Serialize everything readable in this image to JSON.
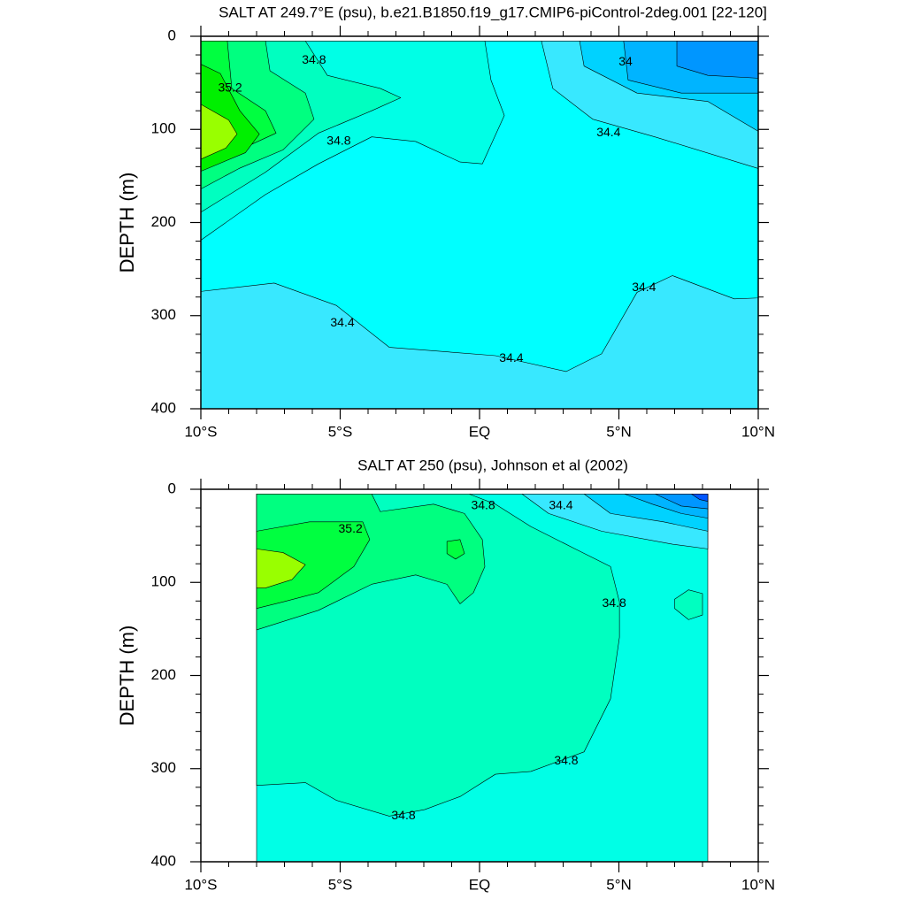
{
  "chart_data": [
    {
      "type": "contour",
      "title": "SALT AT 249.7°E (psu), b.e21.B1850.f19_g17.CMIP6-piControl-2deg.001 [22-120]",
      "ylabel": "DEPTH (m)",
      "xlim": [
        -10,
        10
      ],
      "ylim": [
        0,
        400
      ],
      "y_reversed": true,
      "xticks": [
        {
          "value": -10,
          "label": "10°S"
        },
        {
          "value": -5,
          "label": "5°S"
        },
        {
          "value": 0,
          "label": "EQ"
        },
        {
          "value": 5,
          "label": "5°N"
        },
        {
          "value": 10,
          "label": "10°N"
        }
      ],
      "yticks": [
        0,
        100,
        200,
        300,
        400
      ],
      "regions": [
        {
          "level": 34.2,
          "color": "#38e8ff",
          "x": [
            -10,
            10,
            10,
            -10
          ],
          "y": [
            5,
            5,
            400,
            400
          ]
        },
        {
          "level": 34.4,
          "color": "#00ffff",
          "x": [
            -10,
            2.22,
            2.63,
            4.06,
            6.29,
            10,
            10,
            9.14,
            6.92,
            5.65,
            4.38,
            3.11,
            0.57,
            -3.24,
            -5.14,
            -7.37,
            -10
          ],
          "y": [
            5,
            5,
            56,
            89,
            108,
            142,
            281,
            282,
            257,
            275,
            341,
            360,
            343,
            334,
            289,
            265,
            274
          ]
        },
        {
          "level": 34.6,
          "color": "#00ffe6",
          "x": [
            -10,
            0.19,
            0.41,
            0.89,
            0.1,
            -0.7,
            -2.29,
            -3.87,
            -5.78,
            -7.68,
            -10
          ],
          "y": [
            5,
            5,
            47,
            85,
            137,
            135,
            113,
            108,
            137,
            170,
            219
          ]
        },
        {
          "level": 34.8,
          "color": "#00ffc0",
          "x": [
            -10,
            -6.25,
            -5.46,
            -3.56,
            -2.83,
            -3.87,
            -5.78,
            -7.68,
            -10
          ],
          "y": [
            5,
            5,
            42,
            56,
            66,
            80,
            104,
            146,
            189
          ]
        },
        {
          "level": 35.0,
          "color": "#00ff80",
          "x": [
            -10,
            -7.68,
            -7.52,
            -6.25,
            -5.94,
            -7.05,
            -8.63,
            -10
          ],
          "y": [
            5,
            5,
            37,
            61,
            89,
            122,
            142,
            164
          ]
        },
        {
          "level": 35.2,
          "color": "#00ff40",
          "x": [
            -10,
            -9.05,
            -8.89,
            -7.68,
            -7.3,
            -8.32,
            -10
          ],
          "y": [
            5,
            5,
            56,
            80,
            104,
            118,
            123
          ]
        },
        {
          "level": 35.4,
          "color": "#00f000",
          "x": [
            -10,
            -9.3,
            -8.6,
            -7.9,
            -8.4,
            -10
          ],
          "y": [
            30,
            40,
            80,
            105,
            125,
            145
          ]
        },
        {
          "level": 35.6,
          "color": "#99ff00",
          "x": [
            -10,
            -9.0,
            -8.7,
            -9.1,
            -10
          ],
          "y": [
            73,
            90,
            105,
            120,
            132
          ]
        },
        {
          "level": 34.0,
          "color": "#00d2ff",
          "x": [
            3.59,
            10,
            10,
            8.19,
            5.65,
            3.75
          ],
          "y": [
            5,
            5,
            102,
            70,
            61,
            32
          ]
        },
        {
          "level": 33.8,
          "color": "#00b4ff",
          "x": [
            5.17,
            10,
            10,
            7.24,
            5.33
          ],
          "y": [
            5,
            5,
            61,
            61,
            47
          ]
        },
        {
          "level": 33.6,
          "color": "#0096ff",
          "x": [
            7.08,
            10,
            10,
            8.19,
            7.08
          ],
          "y": [
            5,
            5,
            45,
            42,
            32
          ]
        }
      ],
      "labels": [
        {
          "value": 34.8,
          "x": -5.94,
          "y": 26
        },
        {
          "value": 35.2,
          "x": -8.95,
          "y": 56
        },
        {
          "value": 34.8,
          "x": -5.05,
          "y": 113
        },
        {
          "value": 34,
          "x": 5.24,
          "y": 28
        },
        {
          "value": 34.4,
          "x": 4.63,
          "y": 104
        },
        {
          "value": 34.4,
          "x": 5.9,
          "y": 270
        },
        {
          "value": 34.4,
          "x": -4.92,
          "y": 308
        },
        {
          "value": 34.4,
          "x": 1.14,
          "y": 346
        }
      ]
    },
    {
      "type": "contour",
      "title": "SALT AT 250 (psu), Johnson et al (2002)",
      "ylabel": "DEPTH (m)",
      "xlim": [
        -10,
        10
      ],
      "ylim": [
        0,
        400
      ],
      "y_reversed": true,
      "xticks": [
        {
          "value": -10,
          "label": "10°S"
        },
        {
          "value": -5,
          "label": "5°S"
        },
        {
          "value": 0,
          "label": "EQ"
        },
        {
          "value": 5,
          "label": "5°N"
        },
        {
          "value": 10,
          "label": "10°N"
        }
      ],
      "yticks": [
        0,
        100,
        200,
        300,
        400
      ],
      "regions": [
        {
          "level": 34.6,
          "color": "#00ffe6",
          "x": [
            -8,
            8.19,
            8.19,
            -8
          ],
          "y": [
            5,
            5,
            400,
            400
          ]
        },
        {
          "level": 34.8,
          "color": "#00ffc0",
          "x": [
            -8,
            -0.38,
            0.57,
            1.84,
            3.43,
            4.7,
            5.02,
            5.02,
            4.7,
            3.75,
            1.84,
            0.57,
            -0.7,
            -1.97,
            -3.24,
            -5.14,
            -6.25,
            -8
          ],
          "y": [
            5,
            5,
            16,
            40,
            64,
            83,
            121,
            159,
            225,
            282,
            303,
            306,
            330,
            344,
            351,
            334,
            315,
            318
          ]
        },
        {
          "level": 34.8,
          "color": "#00ffc0",
          "x": [
            7.0,
            7.5,
            8.0,
            8.0,
            7.5,
            7.0
          ],
          "y": [
            118,
            108,
            112,
            135,
            140,
            128
          ]
        },
        {
          "level": 35.0,
          "color": "#00ff80",
          "x": [
            -8,
            -3.87,
            -3.56,
            -1.65,
            -0.54,
            0.1,
            0.19,
            -0.22,
            -0.7,
            -1.17,
            -2.29,
            -3.87,
            -5.78,
            -8
          ],
          "y": [
            5,
            5,
            24,
            16,
            26,
            54,
            83,
            111,
            123,
            102,
            92,
            102,
            130,
            151
          ]
        },
        {
          "level": 35.2,
          "color": "#00ff40",
          "x": [
            -8,
            -6.1,
            -4.19,
            -3.94,
            -4.51,
            -5.78,
            -7.05,
            -8
          ],
          "y": [
            45,
            35,
            35,
            54,
            83,
            111,
            121,
            128
          ]
        },
        {
          "level": 35.2,
          "color": "#00ff40",
          "x": [
            -1.17,
            -0.7,
            -0.54,
            -0.86,
            -1.17
          ],
          "y": [
            56,
            54,
            69,
            75,
            69
          ]
        },
        {
          "level": 35.4,
          "color": "#99ff00",
          "x": [
            -8,
            -7.05,
            -6.25,
            -6.73,
            -7.68,
            -8
          ],
          "y": [
            64,
            68,
            81,
            97,
            106,
            106
          ]
        },
        {
          "level": 34.4,
          "color": "#38e8ff",
          "x": [
            1.52,
            8.19,
            8.19,
            6.92,
            4.38,
            2.48
          ],
          "y": [
            5,
            5,
            64,
            59,
            45,
            26
          ]
        },
        {
          "level": 34.2,
          "color": "#00d2ff",
          "x": [
            3.75,
            8.19,
            8.19,
            6.6,
            4.7
          ],
          "y": [
            5,
            5,
            45,
            35,
            26
          ]
        },
        {
          "level": 34.0,
          "color": "#00b4ff",
          "x": [
            5.2,
            8.19,
            8.19,
            7.24,
            6.2
          ],
          "y": [
            5,
            5,
            31,
            26,
            16
          ]
        },
        {
          "level": 33.8,
          "color": "#0096ff",
          "x": [
            6.3,
            8.19,
            8.19,
            7.24
          ],
          "y": [
            5,
            5,
            21,
            18
          ]
        },
        {
          "level": 33.6,
          "color": "#0055ff",
          "x": [
            7.6,
            8.19,
            8.19,
            7.9
          ],
          "y": [
            5,
            5,
            13,
            11
          ]
        }
      ],
      "labels": [
        {
          "value": 34.8,
          "x": 0.13,
          "y": 18
        },
        {
          "value": 34.4,
          "x": 2.92,
          "y": 18
        },
        {
          "value": 35.2,
          "x": -4.63,
          "y": 43
        },
        {
          "value": 34.8,
          "x": 4.83,
          "y": 123
        },
        {
          "value": 34.8,
          "x": 3.11,
          "y": 292
        },
        {
          "value": 34.8,
          "x": -2.73,
          "y": 351
        }
      ]
    }
  ]
}
